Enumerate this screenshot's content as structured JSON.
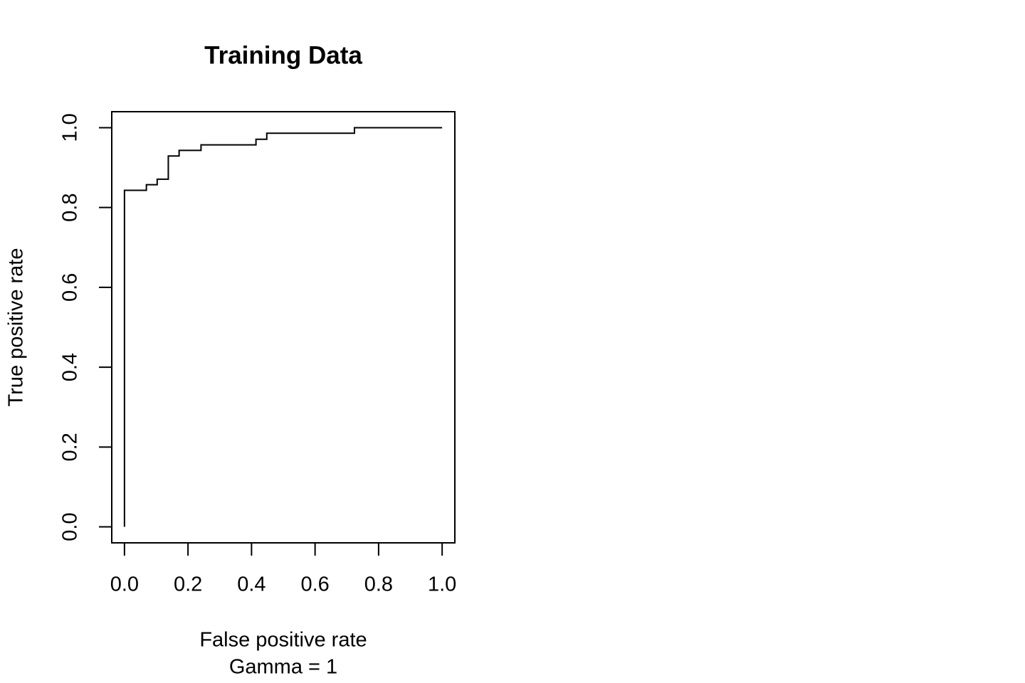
{
  "chart_data": {
    "type": "line",
    "title": "Training Data",
    "x_label": "False positive rate",
    "subtitle": "Gamma = 1",
    "y_label": "True positive rate",
    "x": [
      0,
      0,
      0.069,
      0.069,
      0.103,
      0.103,
      0.138,
      0.138,
      0.172,
      0.172,
      0.241,
      0.241,
      0.414,
      0.414,
      0.448,
      0.448,
      0.724,
      0.724,
      1
    ],
    "series": [
      {
        "color": "#000000",
        "values": [
          0,
          0.843,
          0.843,
          0.857,
          0.857,
          0.871,
          0.871,
          0.929,
          0.929,
          0.943,
          0.943,
          0.957,
          0.957,
          0.971,
          0.971,
          0.986,
          0.986,
          1,
          1
        ]
      }
    ],
    "xlim": [
      -0.04,
      1.04
    ],
    "ylim": [
      -0.04,
      1.04
    ],
    "xticks": [
      {
        "value": 0,
        "label": "0.0"
      },
      {
        "value": 0.2,
        "label": "0.2"
      },
      {
        "value": 0.4,
        "label": "0.4"
      },
      {
        "value": 0.6,
        "label": "0.6"
      },
      {
        "value": 0.8,
        "label": "0.8"
      },
      {
        "value": 1,
        "label": "1.0"
      }
    ],
    "yticks": [
      {
        "value": 0,
        "label": "0.0"
      },
      {
        "value": 0.2,
        "label": "0.2"
      },
      {
        "value": 0.4,
        "label": "0.4"
      },
      {
        "value": 0.6,
        "label": "0.6"
      },
      {
        "value": 0.8,
        "label": "0.8"
      },
      {
        "value": 1,
        "label": "1.0"
      }
    ]
  }
}
